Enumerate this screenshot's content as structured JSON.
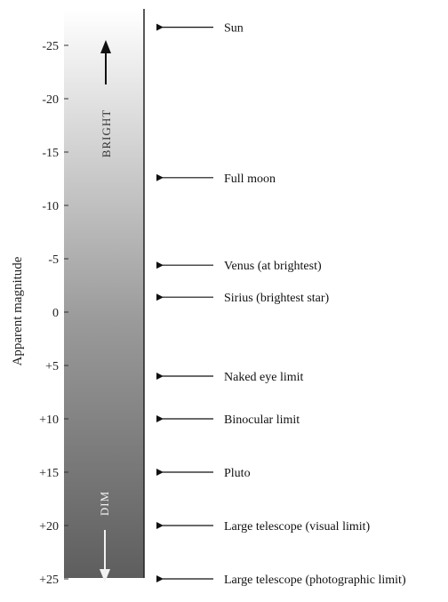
{
  "axis": {
    "title": "Apparent magnitude",
    "ticks": [
      {
        "value": -25,
        "label": "-25"
      },
      {
        "value": -20,
        "label": "-20"
      },
      {
        "value": -15,
        "label": "-15"
      },
      {
        "value": -10,
        "label": "-10"
      },
      {
        "value": -5,
        "label": "-5"
      },
      {
        "value": 0,
        "label": "0"
      },
      {
        "value": 5,
        "label": "+5"
      },
      {
        "value": 10,
        "label": "+10"
      },
      {
        "value": 15,
        "label": "+15"
      },
      {
        "value": 20,
        "label": "+20"
      },
      {
        "value": 25,
        "label": "+25"
      }
    ]
  },
  "bar": {
    "bright_label": "BRIGHT",
    "dim_label": "DIM",
    "gradient_top_color": "#ffffff",
    "gradient_bottom_color": "#5e5e5e"
  },
  "objects": [
    {
      "label": "Sun",
      "magnitude": -26.7
    },
    {
      "label": "Full moon",
      "magnitude": -12.6
    },
    {
      "label": "Venus (at brightest)",
      "magnitude": -4.4
    },
    {
      "label": "Sirius (brightest star)",
      "magnitude": -1.4
    },
    {
      "label": "Naked eye limit",
      "magnitude": 6
    },
    {
      "label": "Binocular limit",
      "magnitude": 10
    },
    {
      "label": "Pluto",
      "magnitude": 15
    },
    {
      "label": "Large telescope (visual limit)",
      "magnitude": 20
    },
    {
      "label": "Large telescope (photographic limit)",
      "magnitude": 25
    }
  ]
}
